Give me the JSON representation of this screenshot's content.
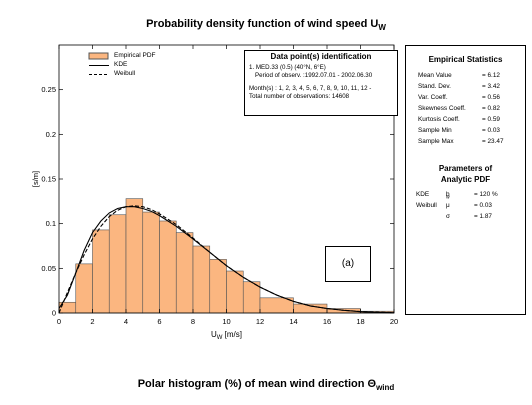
{
  "title": {
    "main": "Probability density function of wind speed U",
    "sub": "W"
  },
  "bottom_title": {
    "main": "Polar histogram (%) of mean wind direction Θ",
    "sub": "wind"
  },
  "legend": [
    {
      "label": "Empirical PDF",
      "style": "bar"
    },
    {
      "label": "KDE",
      "style": "solid"
    },
    {
      "label": "Weibull",
      "style": "dashed"
    }
  ],
  "data_point_box": {
    "title": "Data point(s) identification",
    "line1": "1. MED.33 (0.5)  (40°N, 6°E)",
    "line2": "Period of observ. :1992.07.01 - 2002.06.30",
    "line3": "Month(s) : 1, 2, 3, 4, 5, 6, 7, 8, 9, 10, 11, 12 -",
    "line4": "Total number of observations: 14608"
  },
  "empirical_statistics": {
    "title": "Empirical Statistics",
    "rows": [
      {
        "label": "Mean Value",
        "value": "= 6.12"
      },
      {
        "label": "Stand. Dev.",
        "value": "= 3.42"
      },
      {
        "label": "Var. Coeff.",
        "value": "= 0.56"
      },
      {
        "label": "Skewness Coeff.",
        "value": "= 0.82"
      },
      {
        "label": "Kurtosis Coeff.",
        "value": "= 0.59"
      },
      {
        "label": "Sample Min",
        "value": "= 0.03"
      },
      {
        "label": "Sample Max",
        "value": "= 23.47"
      }
    ]
  },
  "analytic_pdf": {
    "title_line1": "Parameters of",
    "title_line2": "Analytic PDF",
    "kde_label": "KDE",
    "kde_param": "b",
    "kde_param_sub": "w",
    "kde_value": "= 120 %",
    "weibull_label": "Weibull",
    "weibull_mu": "μ",
    "weibull_mu_value": "= 0.03",
    "weibull_sigma": "σ",
    "weibull_sigma_value": "= 1.87"
  },
  "annotation": "(a)",
  "colors": {
    "bar_fill": "#FBB680",
    "bar_edge": "#555555",
    "line": "#000000"
  },
  "chart_data": {
    "type": "bar",
    "xlabel": "U",
    "xlabel_sub": "W",
    "xlabel_unit": " [m/s]",
    "ylabel": "[s/m]",
    "xlim": [
      0,
      20
    ],
    "ylim": [
      0,
      0.3
    ],
    "xticks": [
      0,
      2,
      4,
      6,
      8,
      10,
      12,
      14,
      16,
      18,
      20
    ],
    "yticks": [
      0,
      0.05,
      0.1,
      0.15,
      0.2,
      0.25
    ],
    "ytick_labels": [
      "0",
      "0.05",
      "0.1",
      "0.15",
      "0.2",
      "0.25"
    ],
    "bin_edges": [
      0,
      1,
      2,
      3,
      4,
      5,
      6,
      7,
      8,
      9,
      10,
      11,
      12,
      14,
      16,
      18,
      20
    ],
    "values": [
      0.012,
      0.055,
      0.093,
      0.11,
      0.128,
      0.113,
      0.103,
      0.09,
      0.075,
      0.06,
      0.047,
      0.035,
      0.017,
      0.01,
      0.005,
      0.002
    ],
    "series": [
      {
        "name": "KDE",
        "x": [
          0,
          0.5,
          1,
          1.5,
          2,
          2.5,
          3,
          3.5,
          4,
          4.5,
          5,
          5.5,
          6,
          7,
          8,
          9,
          10,
          11,
          12,
          13,
          14,
          15,
          16,
          17,
          18,
          19,
          20
        ],
        "y": [
          0.005,
          0.02,
          0.045,
          0.07,
          0.09,
          0.103,
          0.112,
          0.117,
          0.119,
          0.119,
          0.117,
          0.114,
          0.109,
          0.097,
          0.083,
          0.068,
          0.053,
          0.04,
          0.029,
          0.02,
          0.013,
          0.008,
          0.005,
          0.003,
          0.0015,
          0.0007,
          0.0003
        ]
      },
      {
        "name": "Weibull",
        "x": [
          0,
          0.5,
          1,
          1.5,
          2,
          2.5,
          3,
          3.5,
          4,
          4.5,
          5,
          5.5,
          6,
          7,
          8,
          9,
          10,
          11,
          12,
          13,
          14,
          15,
          16,
          17,
          18,
          19,
          20
        ],
        "y": [
          0,
          0.023,
          0.045,
          0.065,
          0.083,
          0.097,
          0.108,
          0.115,
          0.119,
          0.12,
          0.119,
          0.116,
          0.111,
          0.099,
          0.084,
          0.068,
          0.053,
          0.04,
          0.029,
          0.02,
          0.013,
          0.008,
          0.005,
          0.003,
          0.0017,
          0.0009,
          0.0005
        ]
      }
    ]
  }
}
